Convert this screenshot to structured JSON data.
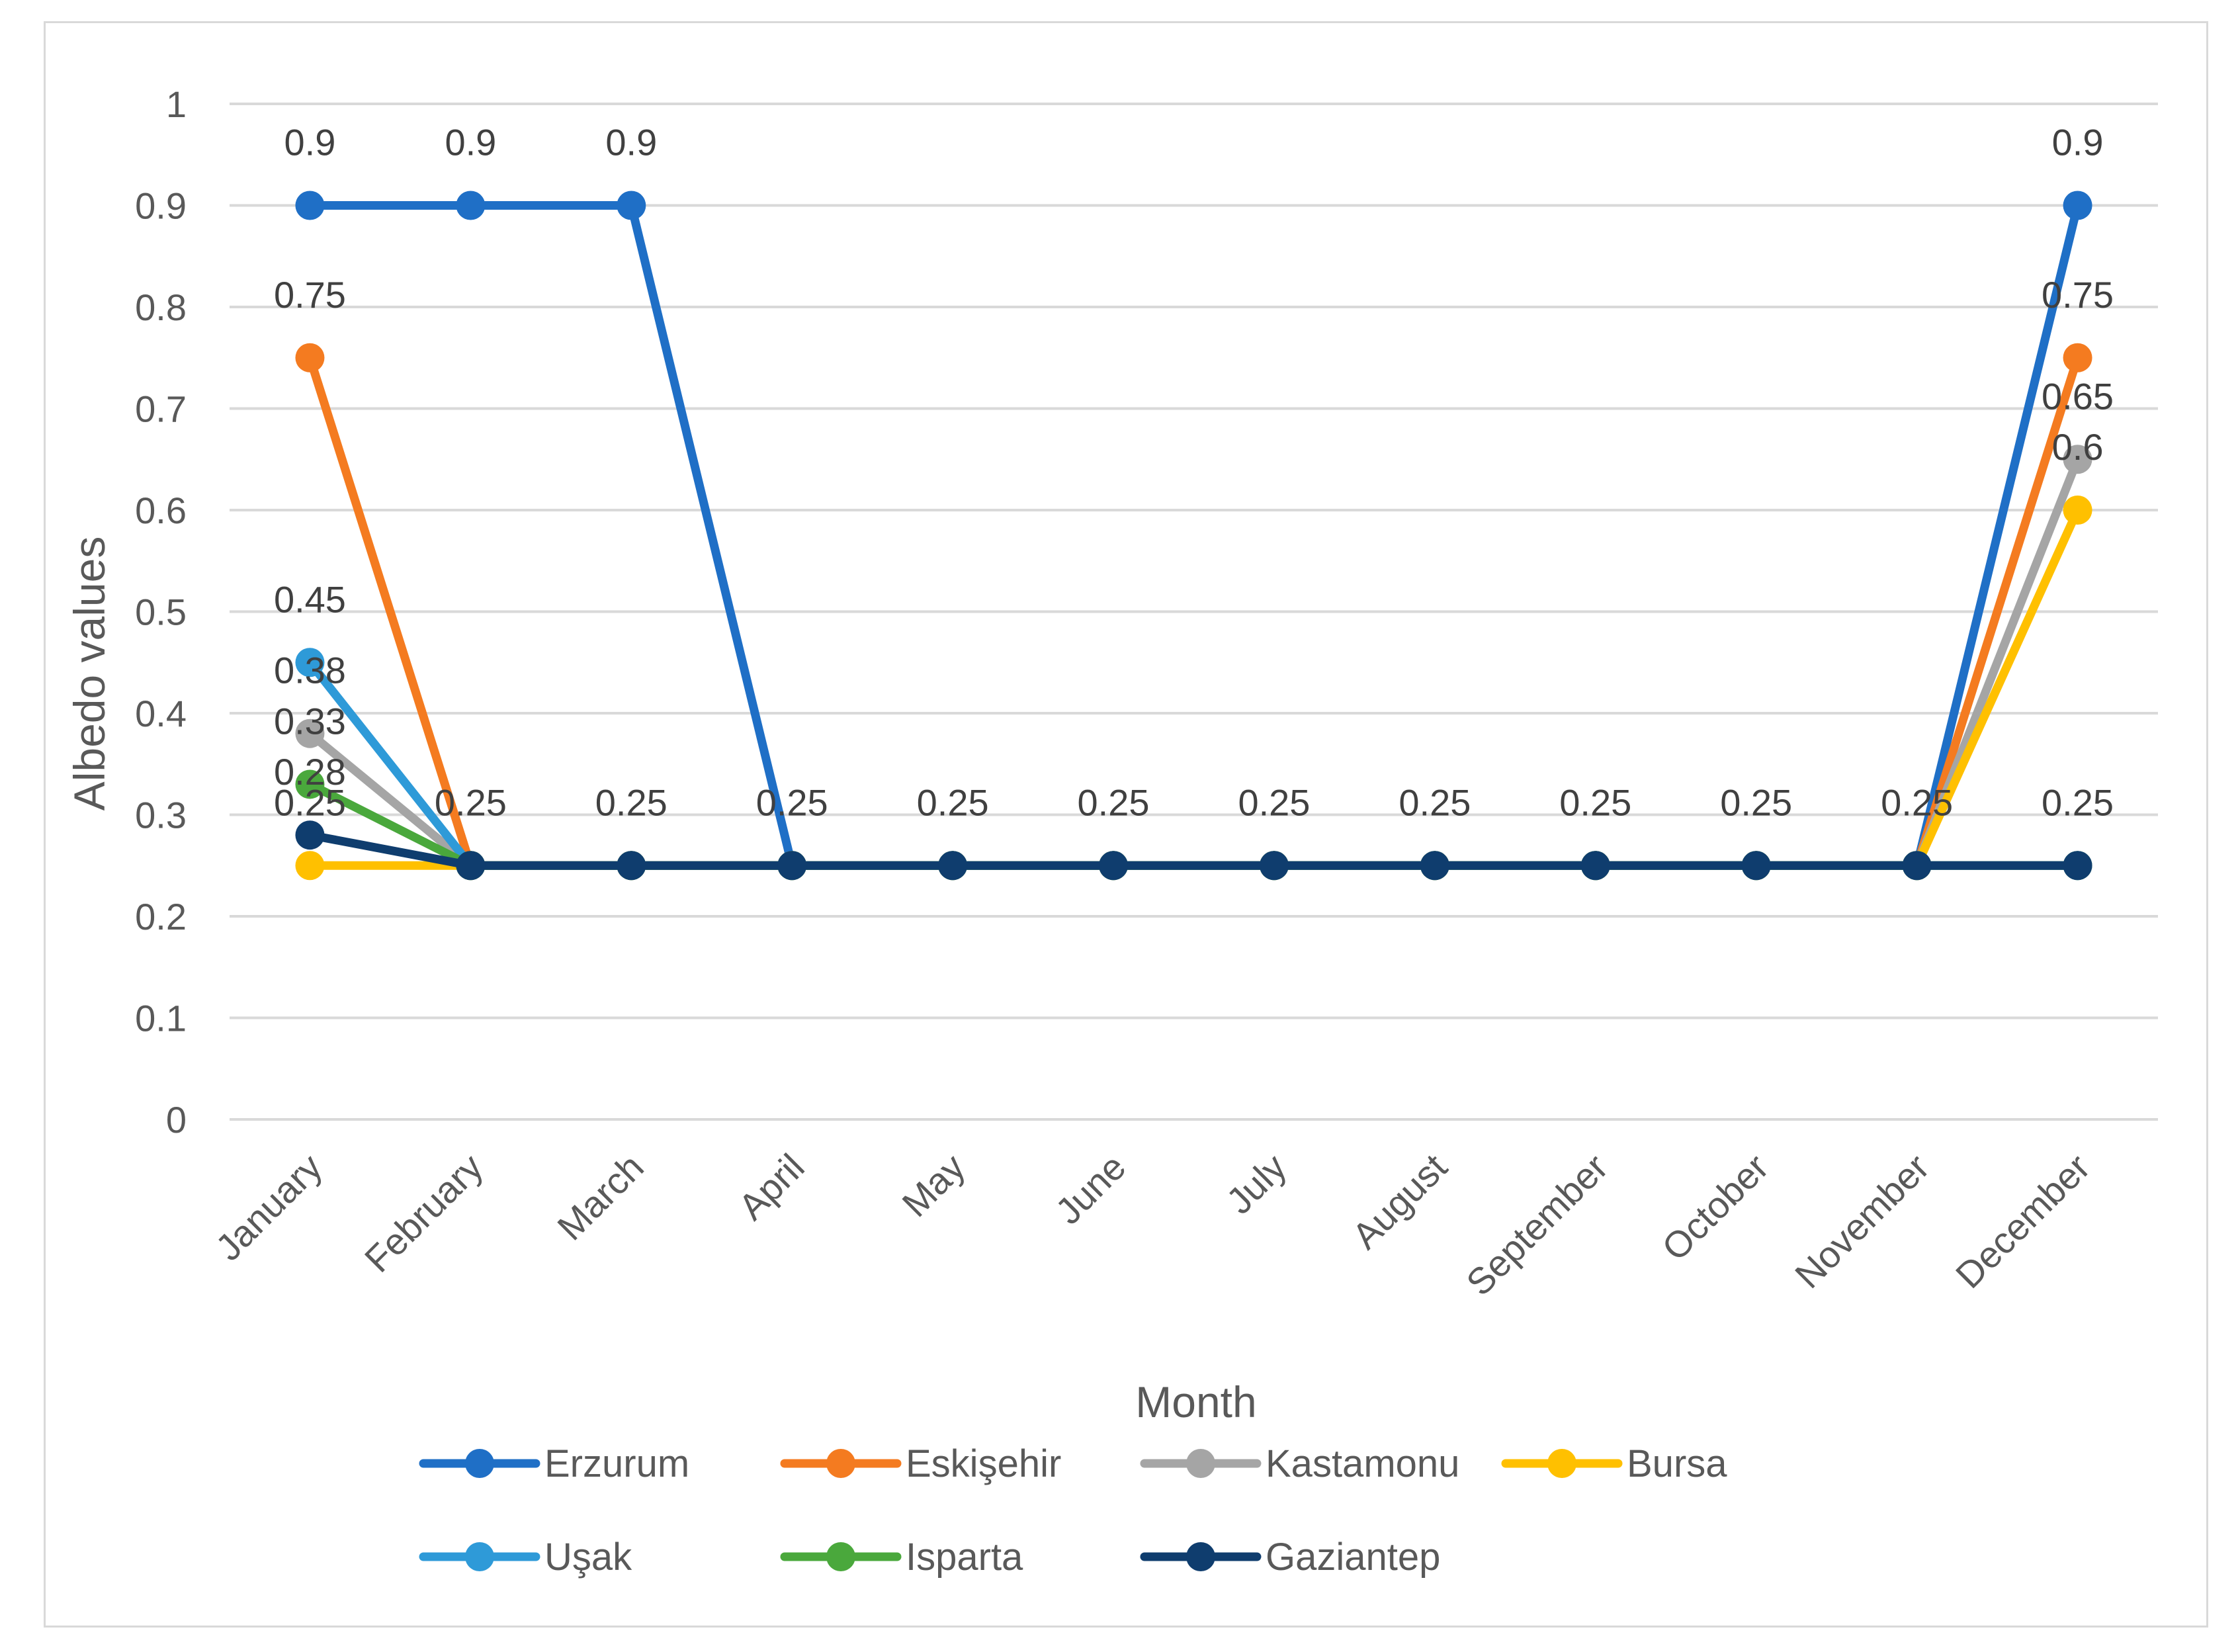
{
  "chart_data": {
    "type": "line",
    "title": "",
    "xlabel": "Month",
    "ylabel": "Albedo values",
    "ylim": [
      0,
      1
    ],
    "yticks": [
      "0",
      "0.1",
      "0.2",
      "0.3",
      "0.4",
      "0.5",
      "0.6",
      "0.7",
      "0.8",
      "0.9",
      "1"
    ],
    "grid": true,
    "legend_position": "bottom",
    "categories": [
      "January",
      "February",
      "March",
      "April",
      "May",
      "June",
      "July",
      "August",
      "September",
      "October",
      "November",
      "December"
    ],
    "series": [
      {
        "name": "Erzurum",
        "color": "#1f6fc6",
        "values": [
          0.9,
          0.9,
          0.9,
          0.25,
          0.25,
          0.25,
          0.25,
          0.25,
          0.25,
          0.25,
          0.25,
          0.9
        ],
        "labels": [
          "0.9",
          "0.9",
          "0.9",
          "",
          "",
          "",
          "",
          "",
          "",
          "",
          "",
          "0.9"
        ]
      },
      {
        "name": "Eskişehir",
        "color": "#f47b20",
        "values": [
          0.75,
          0.25,
          0.25,
          0.25,
          0.25,
          0.25,
          0.25,
          0.25,
          0.25,
          0.25,
          0.25,
          0.75
        ],
        "labels": [
          "0.75",
          "",
          "",
          "",
          "",
          "",
          "",
          "",
          "",
          "",
          "",
          "0.75"
        ]
      },
      {
        "name": "Kastamonu",
        "color": "#a5a5a5",
        "values": [
          0.38,
          0.25,
          0.25,
          0.25,
          0.25,
          0.25,
          0.25,
          0.25,
          0.25,
          0.25,
          0.25,
          0.65
        ],
        "labels": [
          "0.38",
          "",
          "",
          "",
          "",
          "",
          "",
          "",
          "",
          "",
          "",
          "0.65"
        ]
      },
      {
        "name": "Bursa",
        "color": "#ffc000",
        "values": [
          0.25,
          0.25,
          0.25,
          0.25,
          0.25,
          0.25,
          0.25,
          0.25,
          0.25,
          0.25,
          0.25,
          0.6
        ],
        "labels": [
          "0.25",
          "",
          "",
          "",
          "",
          "",
          "",
          "",
          "",
          "",
          "",
          "0.6"
        ]
      },
      {
        "name": "Uşak",
        "color": "#2e9ad8",
        "values": [
          0.45,
          0.25,
          0.25,
          0.25,
          0.25,
          0.25,
          0.25,
          0.25,
          0.25,
          0.25,
          0.25,
          0.25
        ],
        "labels": [
          "0.45",
          "",
          "",
          "",
          "",
          "",
          "",
          "",
          "",
          "",
          "",
          ""
        ]
      },
      {
        "name": "Isparta",
        "color": "#4aa83c",
        "values": [
          0.33,
          0.25,
          0.25,
          0.25,
          0.25,
          0.25,
          0.25,
          0.25,
          0.25,
          0.25,
          0.25,
          0.25
        ],
        "labels": [
          "0.33",
          "",
          "",
          "",
          "",
          "",
          "",
          "",
          "",
          "",
          "",
          ""
        ]
      },
      {
        "name": "Gaziantep",
        "color": "#0f3d6e",
        "values": [
          0.28,
          0.25,
          0.25,
          0.25,
          0.25,
          0.25,
          0.25,
          0.25,
          0.25,
          0.25,
          0.25,
          0.25
        ],
        "labels": [
          "0.28",
          "0.25",
          "0.25",
          "0.25",
          "0.25",
          "0.25",
          "0.25",
          "0.25",
          "0.25",
          "0.25",
          "0.25",
          "0.25"
        ]
      }
    ]
  }
}
